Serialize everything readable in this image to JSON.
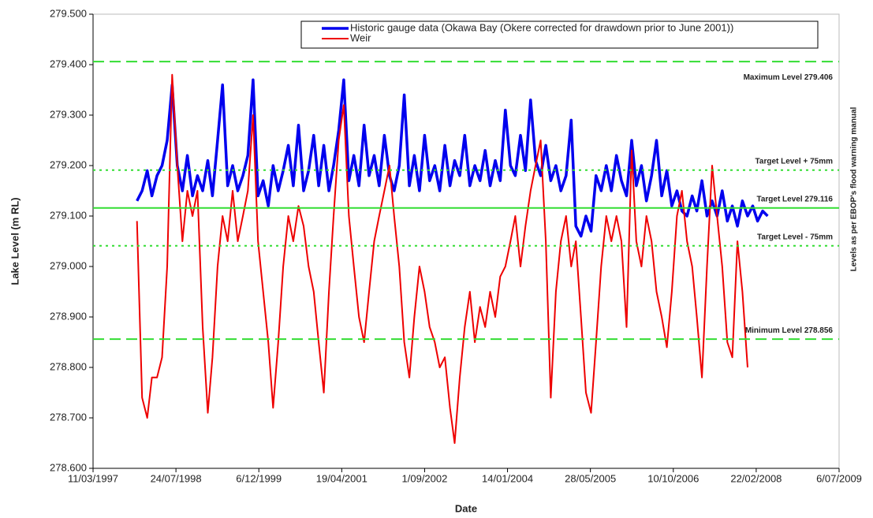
{
  "chart_data": {
    "type": "line",
    "x_label": "Date",
    "y_label": "Lake Level (m RL)",
    "side_note": "Levels as per EBOP's flood warning manual",
    "xlim": [
      "1997-03-11",
      "2009-07-06"
    ],
    "xticks": [
      {
        "value": "1997-03-11",
        "label": "11/03/1997"
      },
      {
        "value": "1998-07-24",
        "label": "24/07/1998"
      },
      {
        "value": "1999-12-06",
        "label": "6/12/1999"
      },
      {
        "value": "2001-04-19",
        "label": "19/04/2001"
      },
      {
        "value": "2002-09-01",
        "label": "1/09/2002"
      },
      {
        "value": "2004-01-14",
        "label": "14/01/2004"
      },
      {
        "value": "2005-05-28",
        "label": "28/05/2005"
      },
      {
        "value": "2006-10-10",
        "label": "10/10/2006"
      },
      {
        "value": "2008-02-22",
        "label": "22/02/2008"
      },
      {
        "value": "2009-07-06",
        "label": "6/07/2009"
      }
    ],
    "ylim": [
      278.6,
      279.5
    ],
    "yticks": [
      {
        "value": 278.6,
        "label": "278.600"
      },
      {
        "value": 278.7,
        "label": "278.700"
      },
      {
        "value": 278.8,
        "label": "278.800"
      },
      {
        "value": 278.9,
        "label": "278.900"
      },
      {
        "value": 279.0,
        "label": "279.000"
      },
      {
        "value": 279.1,
        "label": "279.100"
      },
      {
        "value": 279.2,
        "label": "279.200"
      },
      {
        "value": 279.3,
        "label": "279.300"
      },
      {
        "value": 279.4,
        "label": "279.400"
      },
      {
        "value": 279.5,
        "label": "279.500"
      }
    ],
    "reference_lines": [
      {
        "value": 279.406,
        "label": "Maximum Level 279.406",
        "style": "dashed",
        "color": "#33dd33"
      },
      {
        "value": 279.191,
        "label": "Target Level + 75mm",
        "style": "dotted",
        "color": "#33dd33"
      },
      {
        "value": 279.116,
        "label": "Target Level 279.116",
        "style": "solid",
        "color": "#33dd33"
      },
      {
        "value": 279.041,
        "label": "Target Level - 75mm",
        "style": "dotted",
        "color": "#33dd33"
      },
      {
        "value": 278.856,
        "label": "Minimum Level 278.856",
        "style": "dashed",
        "color": "#33dd33"
      }
    ],
    "x": [
      "1997-12-01",
      "1998-01-01",
      "1998-02-01",
      "1998-03-01",
      "1998-04-01",
      "1998-05-01",
      "1998-06-01",
      "1998-07-01",
      "1998-08-01",
      "1998-09-01",
      "1998-10-01",
      "1998-11-01",
      "1998-12-01",
      "1999-01-01",
      "1999-02-01",
      "1999-03-01",
      "1999-04-01",
      "1999-05-01",
      "1999-06-01",
      "1999-07-01",
      "1999-08-01",
      "1999-09-01",
      "1999-10-01",
      "1999-11-01",
      "1999-12-01",
      "2000-01-01",
      "2000-02-01",
      "2000-03-01",
      "2000-04-01",
      "2000-05-01",
      "2000-06-01",
      "2000-07-01",
      "2000-08-01",
      "2000-09-01",
      "2000-10-01",
      "2000-11-01",
      "2000-12-01",
      "2001-01-01",
      "2001-02-01",
      "2001-03-01",
      "2001-04-01",
      "2001-05-01",
      "2001-06-01",
      "2001-07-01",
      "2001-08-01",
      "2001-09-01",
      "2001-10-01",
      "2001-11-01",
      "2001-12-01",
      "2002-01-01",
      "2002-02-01",
      "2002-03-01",
      "2002-04-01",
      "2002-05-01",
      "2002-06-01",
      "2002-07-01",
      "2002-08-01",
      "2002-09-01",
      "2002-10-01",
      "2002-11-01",
      "2002-12-01",
      "2003-01-01",
      "2003-02-01",
      "2003-03-01",
      "2003-04-01",
      "2003-05-01",
      "2003-06-01",
      "2003-07-01",
      "2003-08-01",
      "2003-09-01",
      "2003-10-01",
      "2003-11-01",
      "2003-12-01",
      "2004-01-01",
      "2004-02-01",
      "2004-03-01",
      "2004-04-01",
      "2004-05-01",
      "2004-06-01",
      "2004-07-01",
      "2004-08-01",
      "2004-09-01",
      "2004-10-01",
      "2004-11-01",
      "2004-12-01",
      "2005-01-01",
      "2005-02-01",
      "2005-03-01",
      "2005-04-01",
      "2005-05-01",
      "2005-06-01",
      "2005-07-01",
      "2005-08-01",
      "2005-09-01",
      "2005-10-01",
      "2005-11-01",
      "2005-12-01",
      "2006-01-01",
      "2006-02-01",
      "2006-03-01",
      "2006-04-01",
      "2006-05-01",
      "2006-06-01",
      "2006-07-01",
      "2006-08-01",
      "2006-09-01",
      "2006-10-01",
      "2006-11-01",
      "2006-12-01",
      "2007-01-01",
      "2007-02-01",
      "2007-03-01",
      "2007-04-01",
      "2007-05-01",
      "2007-06-01",
      "2007-07-01",
      "2007-08-01",
      "2007-09-01",
      "2007-10-01",
      "2007-11-01",
      "2007-12-01",
      "2008-01-01",
      "2008-02-01",
      "2008-03-01",
      "2008-04-01",
      "2008-05-01"
    ],
    "series": [
      {
        "name": "Historic gauge data (Okawa Bay (Okere corrected for drawdown prior to June 2001))",
        "color": "#0000ee",
        "width": 3.5,
        "values": [
          279.13,
          279.15,
          279.19,
          279.14,
          279.18,
          279.2,
          279.25,
          279.36,
          279.2,
          279.15,
          279.22,
          279.14,
          279.18,
          279.15,
          279.21,
          279.14,
          279.25,
          279.36,
          279.16,
          279.2,
          279.15,
          279.18,
          279.22,
          279.37,
          279.14,
          279.17,
          279.12,
          279.2,
          279.15,
          279.19,
          279.24,
          279.16,
          279.28,
          279.15,
          279.19,
          279.26,
          279.16,
          279.24,
          279.15,
          279.2,
          279.27,
          279.37,
          279.17,
          279.22,
          279.16,
          279.28,
          279.18,
          279.22,
          279.16,
          279.26,
          279.18,
          279.15,
          279.2,
          279.34,
          279.16,
          279.22,
          279.15,
          279.26,
          279.17,
          279.2,
          279.15,
          279.24,
          279.16,
          279.21,
          279.18,
          279.26,
          279.16,
          279.2,
          279.17,
          279.23,
          279.16,
          279.21,
          279.17,
          279.31,
          279.2,
          279.18,
          279.26,
          279.19,
          279.33,
          279.21,
          279.18,
          279.24,
          279.17,
          279.2,
          279.15,
          279.18,
          279.29,
          279.08,
          279.06,
          279.1,
          279.07,
          279.18,
          279.15,
          279.2,
          279.15,
          279.22,
          279.17,
          279.14,
          279.25,
          279.16,
          279.2,
          279.13,
          279.18,
          279.25,
          279.14,
          279.19,
          279.12,
          279.15,
          279.11,
          279.1,
          279.14,
          279.11,
          279.17,
          279.1,
          279.13,
          279.1,
          279.15,
          279.09,
          279.12,
          279.08,
          279.13,
          279.1,
          279.12,
          279.09,
          279.11,
          279.1
        ]
      },
      {
        "name": "Weir",
        "color": "#ee0000",
        "width": 2,
        "values": [
          279.09,
          278.74,
          278.7,
          278.78,
          278.78,
          278.82,
          279.0,
          279.38,
          279.2,
          279.05,
          279.15,
          279.1,
          279.15,
          278.88,
          278.71,
          278.82,
          279.0,
          279.1,
          279.05,
          279.15,
          279.05,
          279.1,
          279.15,
          279.3,
          279.05,
          278.95,
          278.85,
          278.72,
          278.85,
          279.0,
          279.1,
          279.05,
          279.12,
          279.08,
          279.0,
          278.95,
          278.85,
          278.75,
          278.95,
          279.1,
          279.25,
          279.32,
          279.1,
          279.0,
          278.9,
          278.85,
          278.95,
          279.05,
          279.1,
          279.15,
          279.2,
          279.1,
          279.0,
          278.85,
          278.78,
          278.9,
          279.0,
          278.95,
          278.88,
          278.85,
          278.8,
          278.82,
          278.72,
          278.65,
          278.78,
          278.88,
          278.95,
          278.85,
          278.92,
          278.88,
          278.95,
          278.9,
          278.98,
          279.0,
          279.05,
          279.1,
          279.0,
          279.08,
          279.15,
          279.2,
          279.25,
          279.05,
          278.74,
          278.95,
          279.05,
          279.1,
          279.0,
          279.05,
          278.9,
          278.75,
          278.71,
          278.85,
          279.0,
          279.1,
          279.05,
          279.1,
          279.05,
          278.88,
          279.23,
          279.05,
          279.0,
          279.1,
          279.05,
          278.95,
          278.9,
          278.84,
          278.95,
          279.1,
          279.15,
          279.05,
          279.0,
          278.9,
          278.78,
          279.0,
          279.2,
          279.1,
          279.0,
          278.85,
          278.82,
          279.05,
          278.95,
          278.8,
          null,
          null,
          null,
          null
        ]
      }
    ]
  }
}
